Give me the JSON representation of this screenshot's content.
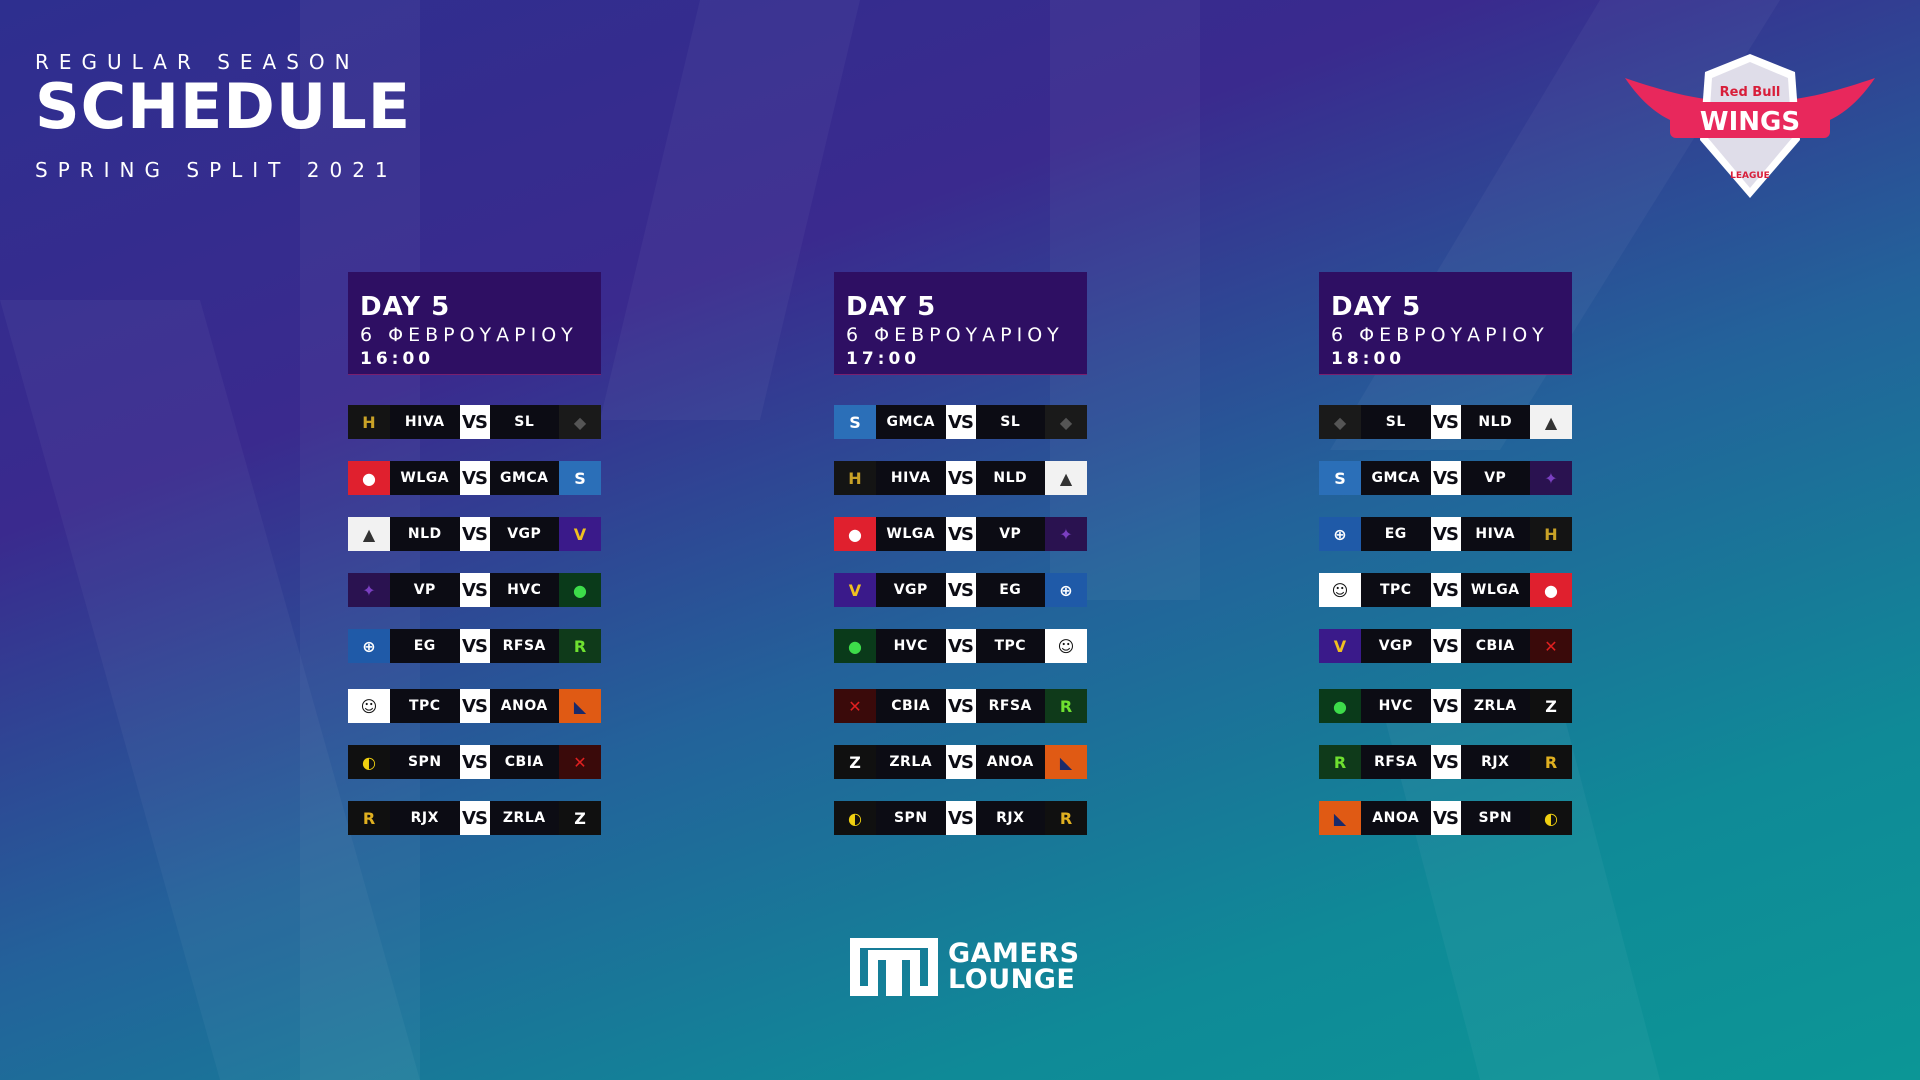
{
  "header": {
    "top": "REGULAR SEASON",
    "title": "SCHEDULE",
    "subtitle": "SPRING SPLIT 2021"
  },
  "brand": {
    "league_logo_text": [
      "Red Bull",
      "WINGS",
      "LEAGUE"
    ],
    "partner_text": [
      "GAMERS",
      "LOUNGE"
    ]
  },
  "vs_label": "VS",
  "teams": {
    "HIVA": {
      "bg": "#141414",
      "fg": "#c9a227",
      "glyph": "H"
    },
    "SL": {
      "bg": "#1a1a1a",
      "fg": "#555555",
      "glyph": "◆"
    },
    "WLGA": {
      "bg": "#e0202e",
      "fg": "#ffffff",
      "glyph": "●"
    },
    "GMCA": {
      "bg": "#2b6fb8",
      "fg": "#ffffff",
      "glyph": "S"
    },
    "NLD": {
      "bg": "#f2f2f2",
      "fg": "#333333",
      "glyph": "▲"
    },
    "VGP": {
      "bg": "#3a1a8a",
      "fg": "#f0c020",
      "glyph": "V"
    },
    "VP": {
      "bg": "#2a1250",
      "fg": "#7a3fc0",
      "glyph": "✦"
    },
    "HVC": {
      "bg": "#0a3a1a",
      "fg": "#3ddc4a",
      "glyph": "●"
    },
    "EG": {
      "bg": "#1f5aa8",
      "fg": "#ffffff",
      "glyph": "⊕"
    },
    "RFSA": {
      "bg": "#0f3a1a",
      "fg": "#6ee030",
      "glyph": "R"
    },
    "TPC": {
      "bg": "#ffffff",
      "fg": "#111111",
      "glyph": "☺"
    },
    "ANOA": {
      "bg": "#e05a14",
      "fg": "#1a2a6a",
      "glyph": "◣"
    },
    "SPN": {
      "bg": "#101010",
      "fg": "#f0d010",
      "glyph": "◐"
    },
    "CBIA": {
      "bg": "#3a0a0a",
      "fg": "#e02020",
      "glyph": "✕"
    },
    "RJX": {
      "bg": "#101010",
      "fg": "#e0b020",
      "glyph": "R"
    },
    "ZRLA": {
      "bg": "#101010",
      "fg": "#ffffff",
      "glyph": "Z"
    }
  },
  "days": [
    {
      "title": "DAY 5",
      "date": "6 ΦΕΒΡΟΥΑΡΙΟΥ",
      "time": "16:00",
      "matches": [
        {
          "home": "HIVA",
          "away": "SL"
        },
        {
          "home": "WLGA",
          "away": "GMCA"
        },
        {
          "home": "NLD",
          "away": "VGP"
        },
        {
          "home": "VP",
          "away": "HVC"
        },
        {
          "home": "EG",
          "away": "RFSA"
        },
        {
          "home": "TPC",
          "away": "ANOA"
        },
        {
          "home": "SPN",
          "away": "CBIA"
        },
        {
          "home": "RJX",
          "away": "ZRLA"
        }
      ]
    },
    {
      "title": "DAY 5",
      "date": "6 ΦΕΒΡΟΥΑΡΙΟΥ",
      "time": "17:00",
      "matches": [
        {
          "home": "GMCA",
          "away": "SL"
        },
        {
          "home": "HIVA",
          "away": "NLD"
        },
        {
          "home": "WLGA",
          "away": "VP"
        },
        {
          "home": "VGP",
          "away": "EG"
        },
        {
          "home": "HVC",
          "away": "TPC"
        },
        {
          "home": "CBIA",
          "away": "RFSA"
        },
        {
          "home": "ZRLA",
          "away": "ANOA"
        },
        {
          "home": "SPN",
          "away": "RJX"
        }
      ]
    },
    {
      "title": "DAY 5",
      "date": "6 ΦΕΒΡΟΥΑΡΙΟΥ",
      "time": "18:00",
      "matches": [
        {
          "home": "SL",
          "away": "NLD"
        },
        {
          "home": "GMCA",
          "away": "VP"
        },
        {
          "home": "EG",
          "away": "HIVA"
        },
        {
          "home": "TPC",
          "away": "WLGA"
        },
        {
          "home": "VGP",
          "away": "CBIA"
        },
        {
          "home": "HVC",
          "away": "ZRLA"
        },
        {
          "home": "RFSA",
          "away": "RJX"
        },
        {
          "home": "ANOA",
          "away": "SPN"
        }
      ]
    }
  ]
}
